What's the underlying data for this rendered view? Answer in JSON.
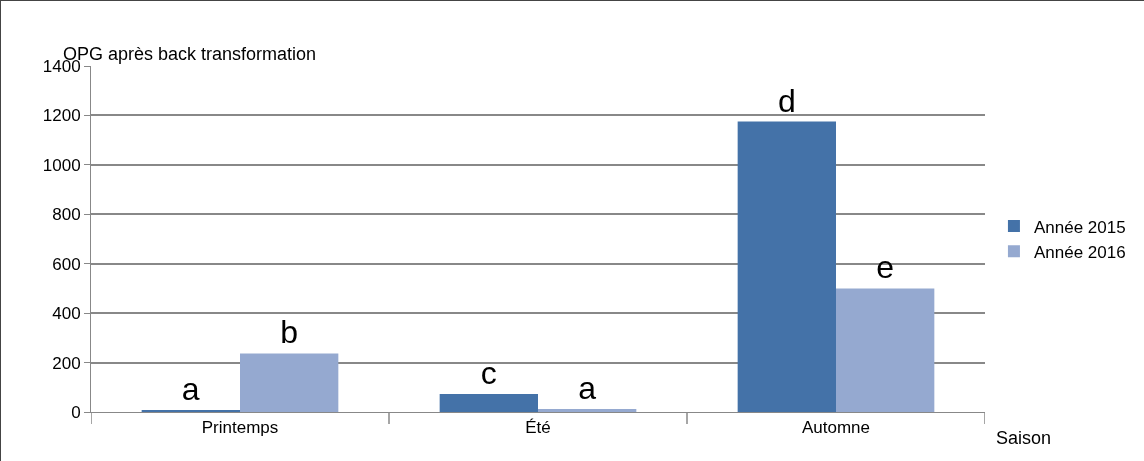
{
  "chart_data": {
    "type": "bar",
    "ylabel": "OPG après back transformation",
    "xlabel": "Saison",
    "categories": [
      "Printemps",
      "Été",
      "Automne"
    ],
    "series": [
      {
        "name": "Année 2015",
        "color": "#4472a8",
        "values": [
          5,
          73,
          1175
        ],
        "value_labels": [
          "a",
          "c",
          "d"
        ]
      },
      {
        "name": "Année 2016",
        "color": "#95a9d0",
        "values": [
          237,
          12,
          500
        ],
        "value_labels": [
          "b",
          "a",
          "e"
        ]
      }
    ],
    "ylim": [
      0,
      1400
    ],
    "yticks": [
      0,
      200,
      400,
      600,
      800,
      1000,
      1200,
      1400
    ],
    "grid": "y",
    "legend": "right"
  }
}
